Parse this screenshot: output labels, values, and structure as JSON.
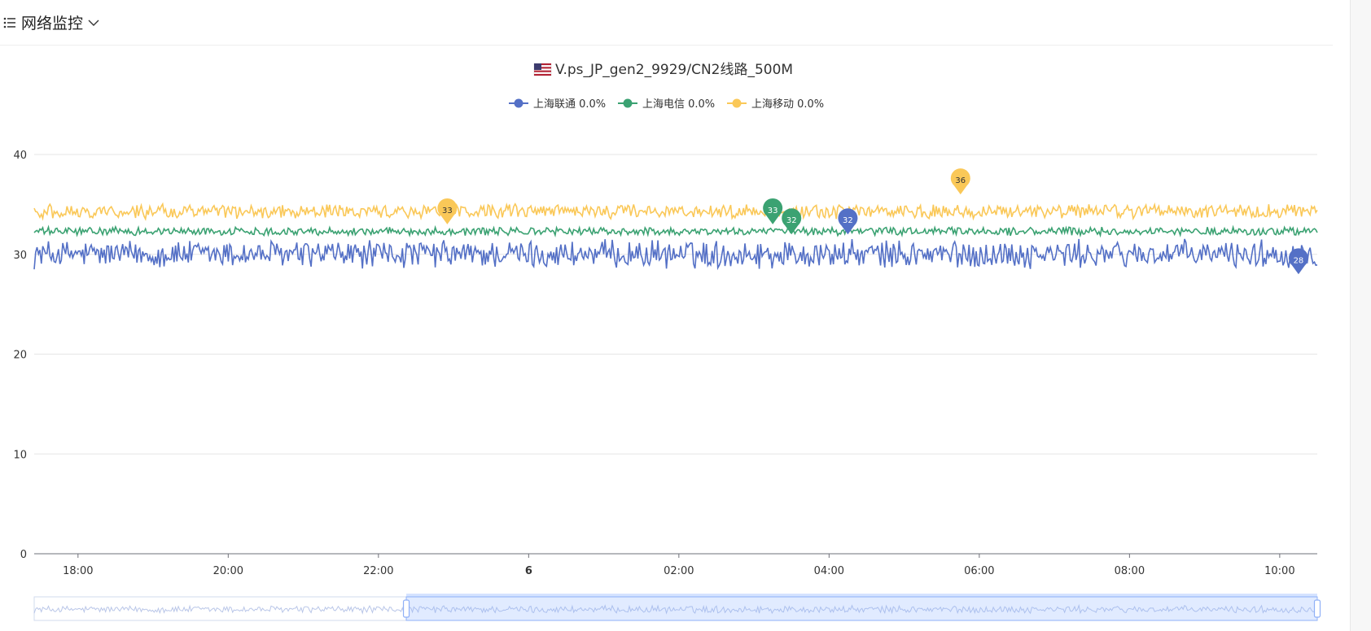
{
  "header": {
    "title": "网络监控",
    "icons": {
      "menu": "list-icon",
      "toggle": "chevron-down-icon"
    }
  },
  "chart_data": {
    "type": "line",
    "title": "V.ps_JP_gen2_9929/CN2线路_500M",
    "title_icon": "us-flag-icon",
    "legend_position": "top-center",
    "grid": true,
    "xlabel": "",
    "ylabel": "",
    "ylim": [
      0,
      40
    ],
    "yticks": [
      0,
      10,
      20,
      30,
      40
    ],
    "x_range": [
      "17:25",
      "10:30"
    ],
    "xticks": [
      "18:00",
      "20:00",
      "22:00",
      "6",
      "02:00",
      "04:00",
      "06:00",
      "08:00",
      "10:00"
    ],
    "series": [
      {
        "name": "上海联通",
        "legend_label": "上海联通 0.0%",
        "color": "#5470c6",
        "mean": 30.0,
        "amplitude": 1.2,
        "markers": [
          {
            "label": "32",
            "x": "04:15",
            "y": 32,
            "type": "max"
          },
          {
            "label": "28",
            "x": "10:15",
            "y": 28,
            "type": "min"
          }
        ]
      },
      {
        "name": "上海电信",
        "legend_label": "上海电信 0.0%",
        "color": "#3ba272",
        "mean": 32.3,
        "amplitude": 0.35,
        "markers": [
          {
            "label": "33",
            "x": "03:15",
            "y": 33,
            "type": "max"
          },
          {
            "label": "32",
            "x": "03:30",
            "y": 32,
            "type": "min"
          }
        ]
      },
      {
        "name": "上海移动",
        "legend_label": "上海移动 0.0%",
        "color": "#fac858",
        "mean": 34.3,
        "amplitude": 0.6,
        "markers": [
          {
            "label": "36",
            "x": "05:45",
            "y": 36,
            "type": "max"
          },
          {
            "label": "33",
            "x": "22:55",
            "y": 33,
            "type": "min"
          }
        ]
      }
    ],
    "zoom": {
      "start_percent": 29,
      "end_percent": 100
    }
  }
}
